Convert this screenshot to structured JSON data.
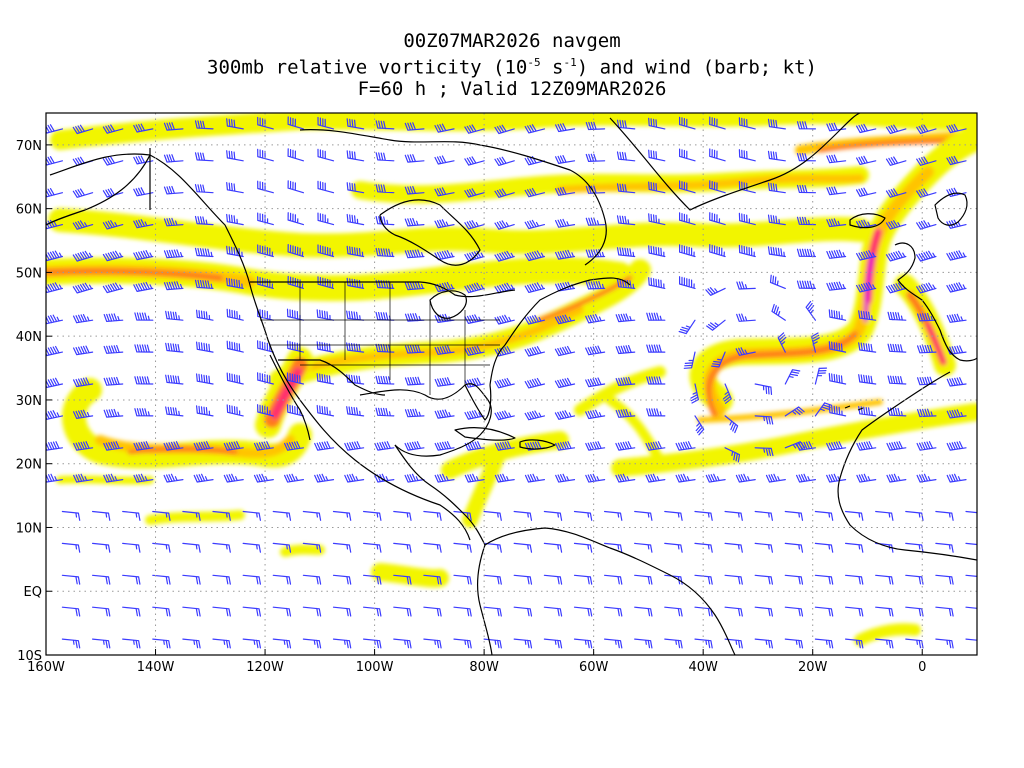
{
  "title": {
    "line1": "00Z07MAR2026 navgem",
    "line2_prefix": "300mb relative vorticity (10",
    "line2_exp1": "-5",
    "line2_mid": " s",
    "line2_exp2": "-1",
    "line2_suffix": ") and wind (barb; kt)",
    "line3": "F=60 h ; Valid 12Z09MAR2026"
  },
  "map": {
    "lon_range": [
      -160,
      10
    ],
    "lat_range": [
      -10,
      75
    ],
    "lat_labels": [
      {
        "lat": 70,
        "label": "70N"
      },
      {
        "lat": 60,
        "label": "60N"
      },
      {
        "lat": 50,
        "label": "50N"
      },
      {
        "lat": 40,
        "label": "40N"
      },
      {
        "lat": 30,
        "label": "30N"
      },
      {
        "lat": 20,
        "label": "20N"
      },
      {
        "lat": 10,
        "label": "10N"
      },
      {
        "lat": 0,
        "label": "EQ"
      },
      {
        "lat": -10,
        "label": "10S"
      }
    ],
    "lon_labels": [
      {
        "lon": -160,
        "label": "160W"
      },
      {
        "lon": -140,
        "label": "140W"
      },
      {
        "lon": -120,
        "label": "120W"
      },
      {
        "lon": -100,
        "label": "100W"
      },
      {
        "lon": -80,
        "label": "80W"
      },
      {
        "lon": -60,
        "label": "60W"
      },
      {
        "lon": -40,
        "label": "40W"
      },
      {
        "lon": -20,
        "label": "20W"
      },
      {
        "lon": 0,
        "label": "0"
      }
    ],
    "colors": {
      "vort_low": "#f2f500",
      "vort_mid": "#ffc400",
      "vort_high": "#ff7a1a",
      "vort_peak": "#ff2f6e",
      "vort_max": "#e000d0",
      "barb": "#3b3bff",
      "coast": "#000000",
      "grid": "#9a9a9a"
    }
  }
}
